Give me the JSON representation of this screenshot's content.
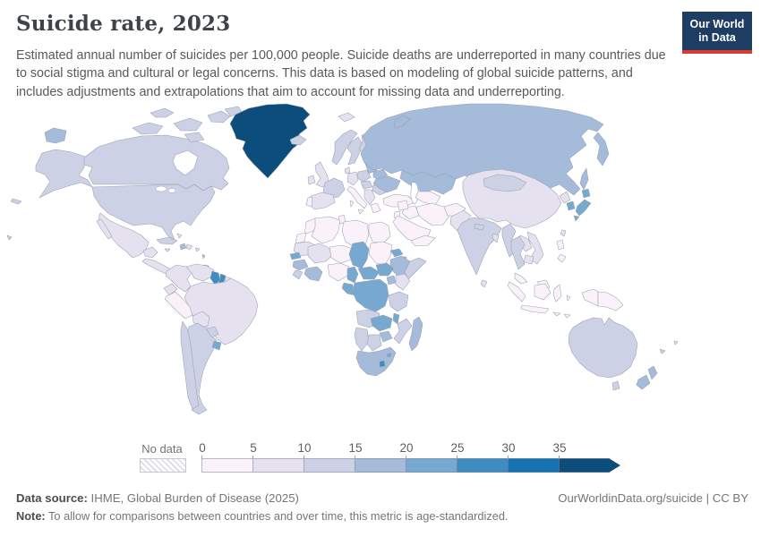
{
  "header": {
    "title": "Suicide rate, 2023",
    "subtitle": "Estimated annual number of suicides per 100,000 people. Suicide deaths are underreported in many countries due to social stigma and cultural or legal concerns. This data is based on modeling of global suicide patterns, and includes adjustments and extrapolations that aim to account for missing data and underreporting."
  },
  "logo": {
    "line1": "Our World",
    "line2": "in Data",
    "bg_color": "#1d3d63",
    "accent_color": "#dc3a2f"
  },
  "legend": {
    "no_data_label": "No data"
  },
  "footer": {
    "source_label": "Data source:",
    "source_text": " IHME, Global Burden of Disease (2025)",
    "right_text": "OurWorldinData.org/suicide | CC BY",
    "note_label": "Note:",
    "note_text": " To allow for comparisons between countries and over time, this metric is age-standardized."
  },
  "chart_data": {
    "type": "heatmap",
    "subtype": "choropleth-world-map",
    "title": "Suicide rate, 2023",
    "unit": "suicides per 100,000 people",
    "year": 2023,
    "legend_position": "bottom",
    "bins": [
      {
        "min": "0",
        "color": "#faf2f8"
      },
      {
        "min": "5",
        "color": "#e6e1ef"
      },
      {
        "min": "10",
        "color": "#cdd1e5"
      },
      {
        "min": "15",
        "color": "#a5bbda"
      },
      {
        "min": "20",
        "color": "#77a9d0"
      },
      {
        "min": "25",
        "color": "#3f8cc1"
      },
      {
        "min": "30",
        "color": "#1572b1"
      },
      {
        "min": "35",
        "color": "#0d4d7c"
      }
    ],
    "bin_ranges": [
      "0-5",
      "5-10",
      "10-15",
      "15-20",
      "20-25",
      "25-30",
      "30-35",
      "35+"
    ],
    "regions": {
      "greenland": {
        "bin": 7
      },
      "canada": {
        "bin": 2
      },
      "united-states": {
        "bin": 2
      },
      "mexico": {
        "bin": 1
      },
      "central-america": {
        "bin": 1
      },
      "cuba": {
        "bin": 2
      },
      "haiti": {
        "bin": 3
      },
      "dominican-republic": {
        "bin": 1
      },
      "jamaica": {
        "bin": 1
      },
      "bahamas": {
        "bin": 1
      },
      "puerto-rico": {
        "bin": 1
      },
      "lesser-antilles": {
        "bin": 3
      },
      "trinidad-and-tobago": {
        "bin": 5
      },
      "colombia": {
        "bin": 1
      },
      "venezuela": {
        "bin": 1
      },
      "guyana": {
        "bin": 5
      },
      "suriname": {
        "bin": 5
      },
      "french-guiana": {
        "bin": 1
      },
      "ecuador": {
        "bin": 1
      },
      "peru": {
        "bin": 0
      },
      "brazil": {
        "bin": 1
      },
      "bolivia": {
        "bin": 1
      },
      "paraguay": {
        "bin": 2
      },
      "argentina": {
        "bin": 2
      },
      "chile": {
        "bin": 2
      },
      "uruguay": {
        "bin": 4
      },
      "iceland": {
        "bin": 2
      },
      "svalbard": {
        "bin": 1
      },
      "united-kingdom": {
        "bin": 1
      },
      "ireland": {
        "bin": 1
      },
      "norway": {
        "bin": 2
      },
      "sweden": {
        "bin": 2
      },
      "finland": {
        "bin": 2
      },
      "denmark": {
        "bin": 1
      },
      "baltic-states": {
        "bin": 3
      },
      "belarus": {
        "bin": 3
      },
      "poland": {
        "bin": 2
      },
      "germany": {
        "bin": 1
      },
      "france": {
        "bin": 2
      },
      "spain": {
        "bin": 1
      },
      "portugal": {
        "bin": 0
      },
      "italy": {
        "bin": 0
      },
      "central-europe": {
        "bin": 2
      },
      "romania": {
        "bin": 2
      },
      "balkans": {
        "bin": 1
      },
      "greece": {
        "bin": 0
      },
      "ukraine": {
        "bin": 3
      },
      "turkey": {
        "bin": 0
      },
      "russia": {
        "bin": 3
      },
      "kazakhstan": {
        "bin": 3
      },
      "central-asia": {
        "bin": 0
      },
      "iran": {
        "bin": 0
      },
      "iraq": {
        "bin": 0
      },
      "syria": {
        "bin": 0
      },
      "israel-jordan": {
        "bin": 0
      },
      "saudi-arabia": {
        "bin": 0
      },
      "yemen-oman": {
        "bin": 0
      },
      "afghanistan": {
        "bin": 0
      },
      "pakistan": {
        "bin": 1
      },
      "india": {
        "bin": 2
      },
      "nepal": {
        "bin": 2
      },
      "bangladesh": {
        "bin": 1
      },
      "sri-lanka": {
        "bin": 1
      },
      "china": {
        "bin": 1
      },
      "mongolia": {
        "bin": 2
      },
      "north-korea": {
        "bin": 1
      },
      "south-korea": {
        "bin": 4
      },
      "japan": {
        "bin": 4
      },
      "taiwan": {
        "bin": 1
      },
      "myanmar": {
        "bin": 2
      },
      "thailand": {
        "bin": 2
      },
      "laos": {
        "bin": 1
      },
      "vietnam": {
        "bin": 1
      },
      "cambodia": {
        "bin": 1
      },
      "malaysia": {
        "bin": 0
      },
      "philippines": {
        "bin": 0
      },
      "indonesia": {
        "bin": 0
      },
      "papua-new-guinea": {
        "bin": 0
      },
      "morocco": {
        "bin": 0
      },
      "western-sahara": {
        "bin": 0
      },
      "algeria": {
        "bin": 0
      },
      "tunisia": {
        "bin": 0
      },
      "libya": {
        "bin": 0
      },
      "egypt": {
        "bin": 0
      },
      "mauritania": {
        "bin": 1
      },
      "mali": {
        "bin": 1
      },
      "niger": {
        "bin": 0
      },
      "chad": {
        "bin": 4
      },
      "sudan": {
        "bin": 0
      },
      "eritrea": {
        "bin": 4
      },
      "ethiopia": {
        "bin": 3
      },
      "somalia": {
        "bin": 2
      },
      "djibouti": {
        "bin": 3
      },
      "senegal": {
        "bin": 4
      },
      "guinea": {
        "bin": 3
      },
      "sierra-leone-liberia": {
        "bin": 2
      },
      "ivory-coast-ghana": {
        "bin": 3
      },
      "nigeria": {
        "bin": 0
      },
      "cameroon": {
        "bin": 4
      },
      "central-african-republic": {
        "bin": 4
      },
      "south-sudan": {
        "bin": 4
      },
      "uganda": {
        "bin": 3
      },
      "kenya": {
        "bin": 1
      },
      "democratic-republic-of-congo": {
        "bin": 4
      },
      "gabon-congo": {
        "bin": 4
      },
      "tanzania": {
        "bin": 2
      },
      "angola": {
        "bin": 2
      },
      "zambia": {
        "bin": 4
      },
      "malawi": {
        "bin": 4
      },
      "mozambique": {
        "bin": 2
      },
      "zimbabwe": {
        "bin": 3
      },
      "namibia": {
        "bin": 2
      },
      "botswana": {
        "bin": 2
      },
      "south-africa": {
        "bin": 3
      },
      "lesotho": {
        "bin": 5
      },
      "eswatini": {
        "bin": 4
      },
      "madagascar": {
        "bin": 3
      },
      "australia": {
        "bin": 2
      },
      "new-zealand": {
        "bin": 3
      },
      "new-caledonia": {
        "bin": 2
      },
      "fiji": {
        "bin": 1
      }
    }
  }
}
